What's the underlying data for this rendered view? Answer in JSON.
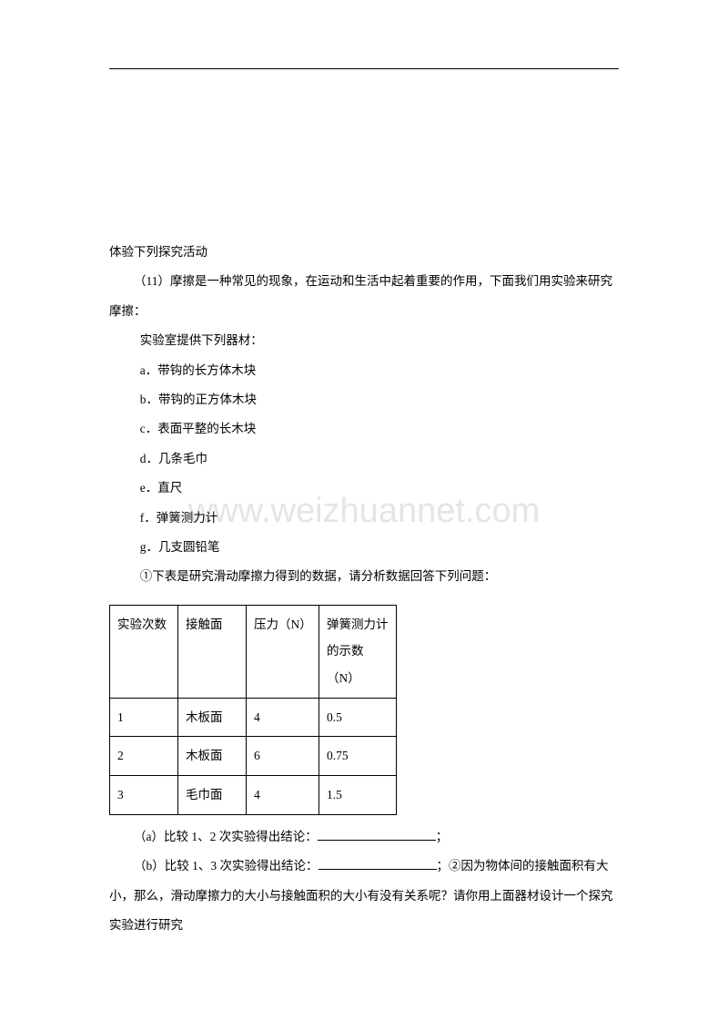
{
  "watermark": "www.weizhuannet.com",
  "title": "体验下列探究活动",
  "intro": "（11）摩擦是一种常见的现象，在运动和生活中起着重要的作用，下面我们用实验来研究摩擦：",
  "labIntro": "实验室提供下列器材：",
  "items": {
    "a": "a．带钩的长方体木块",
    "b": "b．带钩的正方体木块",
    "c": "c．表面平整的长木块",
    "d": "d．几条毛巾",
    "e": "e．直尺",
    "f": "f．弹簧测力计",
    "g": "g．几支圆铅笔"
  },
  "q1": "①下表是研究滑动摩擦力得到的数据，请分析数据回答下列问题：",
  "table": {
    "headers": [
      "实验次数",
      "接触面",
      "压力（N）",
      "弹簧测力计的示数（N）"
    ],
    "rows": [
      [
        "1",
        "木板面",
        "4",
        "0.5"
      ],
      [
        "2",
        "木板面",
        "6",
        "0.75"
      ],
      [
        "3",
        "毛巾面",
        "4",
        "1.5"
      ]
    ]
  },
  "qa_prefix": "（a）比较 1、2 次实验得出结论：",
  "qa_suffix": "；",
  "qb_prefix": "（b）比较 1、3 次实验得出结论：",
  "qb_suffix": "；②因为物体间的接触面积有大小，那么，滑动摩擦力的大小与接触面积的大小有没有关系呢？请你用上面器材设计一个探究实验进行研究"
}
